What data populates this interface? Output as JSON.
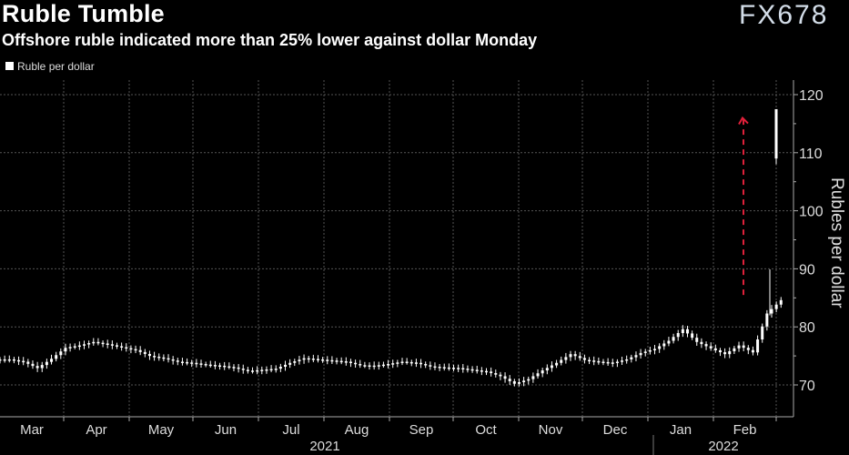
{
  "chart_data": {
    "type": "candlestick",
    "title": "Ruble Tumble",
    "subtitle": "Offshore ruble indicated more than 25% lower against dollar Monday",
    "legend": [
      "Ruble per dollar"
    ],
    "ylabel": "Rubles per dollar",
    "ylim": [
      65,
      122
    ],
    "yticks": [
      70,
      80,
      90,
      100,
      110,
      120
    ],
    "xticks": [
      "Mar",
      "Apr",
      "May",
      "Jun",
      "Jul",
      "Aug",
      "Sep",
      "Oct",
      "Nov",
      "Dec",
      "Jan",
      "Feb"
    ],
    "years": [
      "2021",
      "2022"
    ],
    "weekly_close": [
      74.4,
      74.0,
      72.9,
      74.5,
      76.4,
      76.8,
      77.4,
      77.0,
      76.5,
      76.0,
      75.0,
      74.6,
      74.0,
      73.8,
      73.5,
      73.3,
      73.0,
      72.4,
      72.6,
      72.8,
      73.8,
      74.6,
      74.4,
      74.2,
      74.0,
      73.4,
      73.3,
      73.6,
      74.0,
      73.8,
      73.2,
      73.0,
      72.9,
      72.6,
      72.3,
      71.5,
      70.2,
      71.0,
      72.5,
      73.8,
      75.3,
      74.3,
      74.0,
      73.8,
      74.4,
      75.5,
      76.2,
      77.6,
      79.6,
      77.4,
      76.3,
      75.3,
      76.8,
      75.6,
      82.3,
      84.6
    ],
    "last_candle": {
      "open": 109,
      "close": 117.5,
      "high": 117.5,
      "low": 108
    },
    "spike_high": 89.9,
    "annotation": {
      "type": "arrow",
      "from": 85.5,
      "to": 116,
      "color": "#e0203a"
    },
    "watermark": "FX678"
  }
}
